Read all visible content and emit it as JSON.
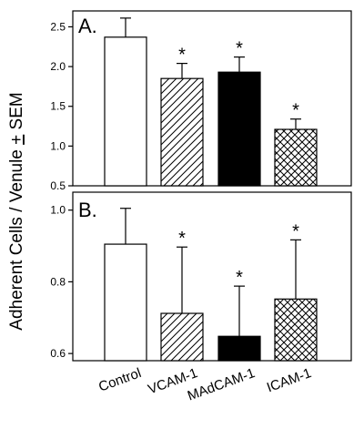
{
  "ylabel": "Adherent Cells / Venule + SEM",
  "ylabel_parts": {
    "before": "Adherent Cells / Venule ",
    "pm": "+",
    "after": " SEM"
  },
  "categories": [
    "Control",
    "VCAM-1",
    "MAdCAM-1",
    "ICAM-1"
  ],
  "significance_marker": "*",
  "chart_data": [
    {
      "type": "bar",
      "panel_label": "A.",
      "categories": [
        "Control",
        "VCAM-1",
        "MAdCAM-1",
        "ICAM-1"
      ],
      "values": [
        2.37,
        1.85,
        1.93,
        1.21
      ],
      "errors": [
        0.24,
        0.19,
        0.19,
        0.13
      ],
      "significant": [
        false,
        true,
        true,
        true
      ],
      "patterns": [
        "white",
        "diagonal",
        "black",
        "crosshatch"
      ],
      "ylim": [
        0.5,
        2.7
      ],
      "yticks": [
        0.5,
        1.0,
        1.5,
        2.0,
        2.5
      ],
      "ytick_labels": [
        "0.5",
        "1.0",
        "1.5",
        "2.0",
        "2.5"
      ],
      "xlabel": "",
      "ylabel": ""
    },
    {
      "type": "bar",
      "panel_label": "B.",
      "categories": [
        "Control",
        "VCAM-1",
        "MAdCAM-1",
        "ICAM-1"
      ],
      "values": [
        0.905,
        0.712,
        0.648,
        0.752
      ],
      "errors": [
        0.1,
        0.185,
        0.14,
        0.165
      ],
      "significant": [
        false,
        true,
        true,
        true
      ],
      "patterns": [
        "white",
        "diagonal",
        "black",
        "crosshatch"
      ],
      "ylim": [
        0.58,
        1.05
      ],
      "yticks": [
        0.6,
        0.8,
        1.0
      ],
      "ytick_labels": [
        "0.6",
        "0.8",
        "1.0"
      ],
      "xlabel": "",
      "ylabel": ""
    }
  ]
}
